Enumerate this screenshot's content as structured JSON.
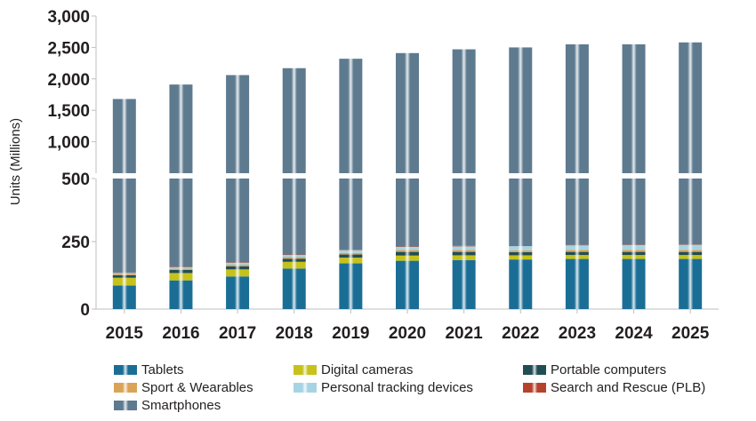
{
  "chart_data": {
    "type": "bar",
    "stacked": true,
    "broken_y_axis": true,
    "ylabel": "Units (Millions)",
    "yticks": [
      "0",
      "250",
      "500",
      "1,000",
      "1,500",
      "2,000",
      "2,500",
      "3,000"
    ],
    "lower_range": [
      0,
      500
    ],
    "upper_range": [
      500,
      3000
    ],
    "categories": [
      "2015",
      "2016",
      "2017",
      "2018",
      "2019",
      "2020",
      "2021",
      "2022",
      "2023",
      "2024",
      "2025"
    ],
    "totals": [
      1680,
      1910,
      2060,
      2170,
      2320,
      2410,
      2470,
      2500,
      2550,
      2550,
      2580
    ],
    "series": [
      {
        "name": "Tablets",
        "color": "#1a6e96",
        "values": [
          90,
          110,
          125,
          155,
          175,
          185,
          188,
          190,
          192,
          192,
          192
        ]
      },
      {
        "name": "Digital cameras",
        "color": "#c6c21b",
        "values": [
          30,
          28,
          27,
          26,
          22,
          20,
          18,
          16,
          15,
          15,
          15
        ]
      },
      {
        "name": "Portable computers",
        "color": "#214d55",
        "values": [
          10,
          12,
          12,
          12,
          12,
          14,
          13,
          12,
          12,
          12,
          12
        ]
      },
      {
        "name": "Sport & Wearables",
        "color": "#d9a457",
        "values": [
          5,
          5,
          6,
          6,
          6,
          7,
          7,
          7,
          8,
          8,
          8
        ]
      },
      {
        "name": "Personal tracking devices",
        "color": "#a7d4e4",
        "values": [
          4,
          6,
          8,
          9,
          12,
          13,
          15,
          17,
          18,
          19,
          20
        ]
      },
      {
        "name": "Search and Rescue (PLB)",
        "color": "#b5432c",
        "values": [
          1,
          1,
          1,
          1,
          1,
          1,
          1,
          1,
          1,
          1,
          1
        ]
      },
      {
        "name": "Smartphones",
        "color": "#5d7a8f",
        "values": [
          1540,
          1748,
          1881,
          1961,
          2092,
          2170,
          2228,
          2257,
          2304,
          2303,
          2332
        ]
      }
    ],
    "legend_position": "bottom",
    "grid": false
  }
}
